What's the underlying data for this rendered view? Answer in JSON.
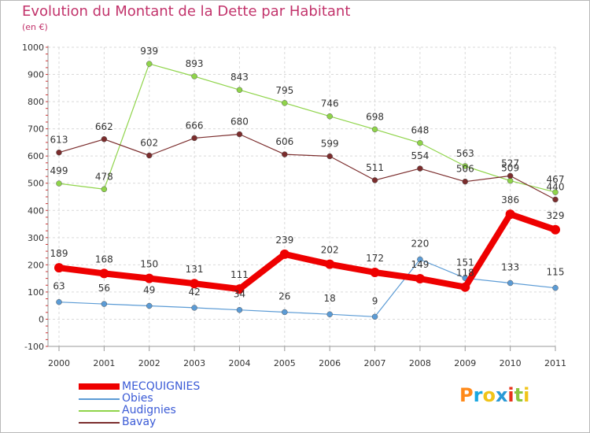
{
  "title": "Evolution du Montant de la Dette par Habitant",
  "subtitle": "(en €)",
  "brand": {
    "text": "Proxiti",
    "colors": [
      "#ff8a1a",
      "#1aa7e0",
      "#f0c419",
      "#2a9ad6",
      "#e8341c",
      "#8cc63f",
      "#f0c419"
    ]
  },
  "chart_data": {
    "type": "line",
    "x": [
      "2000",
      "2001",
      "2002",
      "2003",
      "2004",
      "2005",
      "2006",
      "2007",
      "2008",
      "2009",
      "2010",
      "2011"
    ],
    "ylim": [
      -100,
      1000
    ],
    "yticks": [
      "-100",
      "0",
      "100",
      "200",
      "300",
      "400",
      "500",
      "600",
      "700",
      "800",
      "900",
      "1000"
    ],
    "grid": true,
    "legend_position": "bottom-left",
    "series": [
      {
        "name": "MECQUIGNIES",
        "color": "#ee0000",
        "values": [
          189,
          168,
          150,
          131,
          111,
          239,
          202,
          172,
          149,
          118,
          386,
          329
        ],
        "labels": [
          "189",
          "168",
          "150",
          "131",
          "111",
          "239",
          "202",
          "172",
          "149",
          "118",
          "386",
          "329"
        ]
      },
      {
        "name": "Obies",
        "color": "#5b9bd5",
        "values": [
          63,
          56,
          49,
          42,
          34,
          26,
          18,
          9,
          220,
          151,
          133,
          115
        ],
        "labels": [
          "63",
          "56",
          "49",
          "42",
          "34",
          "26",
          "18",
          "9",
          "220",
          "151",
          "133",
          "115"
        ]
      },
      {
        "name": "Audignies",
        "color": "#8fd44a",
        "values": [
          499,
          478,
          939,
          893,
          843,
          795,
          746,
          698,
          648,
          563,
          509,
          467
        ],
        "labels": [
          "499",
          "478",
          "939",
          "893",
          "843",
          "795",
          "746",
          "698",
          "648",
          "563",
          "509",
          "467"
        ]
      },
      {
        "name": "Bavay",
        "color": "#7b2d2d",
        "values": [
          613,
          662,
          602,
          666,
          680,
          606,
          599,
          511,
          554,
          506,
          527,
          440
        ],
        "labels": [
          "613",
          "662",
          "602",
          "666",
          "680",
          "606",
          "599",
          "511",
          "554",
          "506",
          "527",
          "440"
        ]
      }
    ]
  }
}
